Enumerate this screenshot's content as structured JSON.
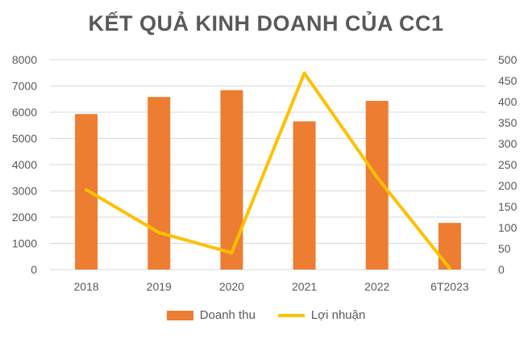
{
  "chart_data": {
    "type": "bar",
    "title": "KẾT QUẢ KINH DOANH CỦA CC1",
    "categories": [
      "2018",
      "2019",
      "2020",
      "2021",
      "2022",
      "6T2023"
    ],
    "series": [
      {
        "name": "Doanh thu",
        "type": "bar",
        "axis": "left",
        "color": "#ED7D31",
        "values": [
          5930,
          6580,
          6840,
          5650,
          6430,
          1780
        ]
      },
      {
        "name": "Lợi nhuận",
        "type": "line",
        "axis": "right",
        "color": "#FFC000",
        "values": [
          190,
          88,
          40,
          468,
          220,
          3
        ]
      }
    ],
    "y_left": {
      "min": 0,
      "max": 8000,
      "ticks": [
        "0",
        "1000",
        "2000",
        "3000",
        "4000",
        "5000",
        "6000",
        "7000",
        "8000"
      ]
    },
    "y_right": {
      "min": 0,
      "max": 500,
      "ticks": [
        "0",
        "50",
        "100",
        "150",
        "200",
        "250",
        "300",
        "350",
        "400",
        "450",
        "500"
      ]
    },
    "grid": true,
    "legend_position": "bottom"
  }
}
